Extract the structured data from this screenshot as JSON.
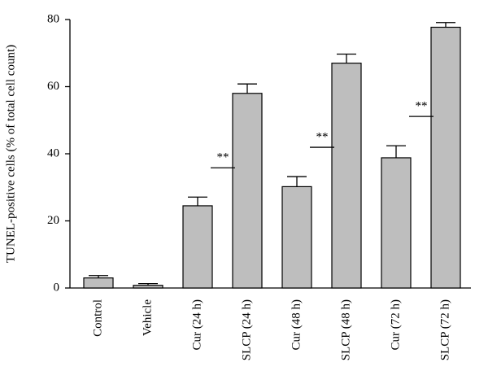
{
  "chart_data": {
    "type": "bar",
    "y_label": "TUNEL-positive cells (% of total cell count)",
    "categories": [
      "Control",
      "Vehicle",
      "Cur (24 h)",
      "SLCP (24 h)",
      "Cur (48 h)",
      "SLCP (48 h)",
      "Cur (72 h)",
      "SLCP (72 h)"
    ],
    "values": [
      3,
      0.8,
      24.5,
      58,
      30.2,
      67,
      38.8,
      77.7
    ],
    "errors": [
      0.7,
      0.5,
      2.6,
      2.8,
      3,
      2.7,
      3.6,
      1.4
    ],
    "color": "#bebebe",
    "ylim": [
      0,
      80
    ],
    "yticks": [
      0,
      20,
      40,
      60,
      80
    ],
    "grid": false,
    "annotations": [
      {
        "text": "**",
        "pair": [
          "Cur (24 h)",
          "SLCP (24 h)"
        ]
      },
      {
        "text": "**",
        "pair": [
          "Cur (48 h)",
          "SLCP (48 h)"
        ]
      },
      {
        "text": "**",
        "pair": [
          "Cur (72 h)",
          "SLCP (72 h)"
        ]
      }
    ]
  }
}
